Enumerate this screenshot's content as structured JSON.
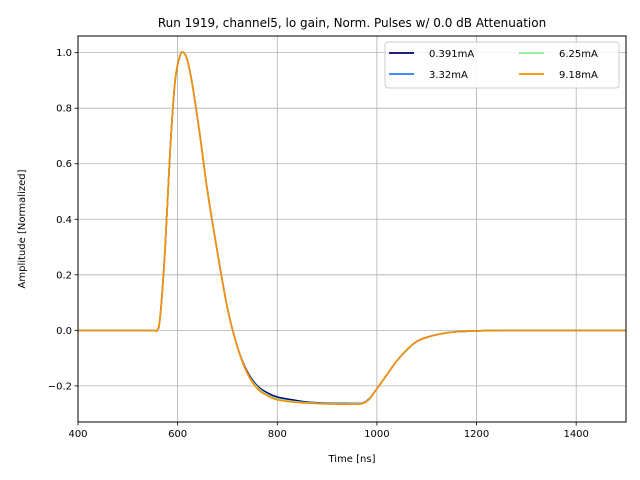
{
  "chart_data": {
    "type": "line",
    "title": "Run 1919, channel5, lo gain, Norm. Pulses w/ 0.0 dB Attenuation",
    "xlabel": "Time [ns]",
    "ylabel": "Amplitude [Normalized]",
    "xlim": [
      400,
      1500
    ],
    "ylim": [
      -0.33,
      1.06
    ],
    "xticks": [
      400,
      600,
      800,
      1000,
      1200,
      1400
    ],
    "yticks": [
      -0.2,
      0.0,
      0.2,
      0.4,
      0.6,
      0.8,
      1.0
    ],
    "ytick_labels": [
      "−0.2",
      "0.0",
      "0.2",
      "0.4",
      "0.6",
      "0.8",
      "1.0"
    ],
    "grid": true,
    "legend": {
      "placement": "top-right",
      "columns": 2
    },
    "x": [
      400,
      540,
      558,
      565,
      575,
      585,
      595,
      605,
      612,
      620,
      630,
      645,
      660,
      680,
      700,
      720,
      740,
      760,
      780,
      800,
      830,
      860,
      900,
      940,
      970,
      985,
      1000,
      1020,
      1040,
      1060,
      1080,
      1100,
      1130,
      1160,
      1200,
      1250,
      1300,
      1400,
      1500
    ],
    "series": [
      {
        "name": "0.391mA",
        "color": "#00006e",
        "values": [
          0.0,
          0.0,
          0.0,
          0.05,
          0.3,
          0.65,
          0.9,
          0.99,
          1.0,
          0.97,
          0.88,
          0.7,
          0.5,
          0.28,
          0.08,
          -0.06,
          -0.15,
          -0.2,
          -0.225,
          -0.24,
          -0.25,
          -0.258,
          -0.262,
          -0.263,
          -0.262,
          -0.245,
          -0.21,
          -0.16,
          -0.11,
          -0.07,
          -0.04,
          -0.025,
          -0.012,
          -0.005,
          -0.002,
          0.0,
          0.0,
          0.0,
          0.0
        ]
      },
      {
        "name": "3.32mA",
        "color": "#1f7fff",
        "values": [
          0.0,
          0.0,
          0.0,
          0.05,
          0.3,
          0.65,
          0.9,
          0.99,
          1.0,
          0.97,
          0.88,
          0.7,
          0.5,
          0.28,
          0.08,
          -0.06,
          -0.155,
          -0.205,
          -0.23,
          -0.245,
          -0.255,
          -0.26,
          -0.263,
          -0.264,
          -0.262,
          -0.245,
          -0.21,
          -0.16,
          -0.11,
          -0.07,
          -0.04,
          -0.025,
          -0.012,
          -0.005,
          -0.002,
          0.0,
          0.0,
          0.0,
          0.0
        ]
      },
      {
        "name": "6.25mA",
        "color": "#90ee90",
        "values": [
          0.0,
          0.0,
          0.0,
          0.05,
          0.3,
          0.65,
          0.9,
          0.99,
          1.0,
          0.97,
          0.88,
          0.7,
          0.5,
          0.28,
          0.08,
          -0.06,
          -0.155,
          -0.205,
          -0.232,
          -0.247,
          -0.256,
          -0.261,
          -0.264,
          -0.265,
          -0.263,
          -0.246,
          -0.21,
          -0.16,
          -0.11,
          -0.07,
          -0.04,
          -0.025,
          -0.012,
          -0.005,
          -0.002,
          0.0,
          0.0,
          0.0,
          0.0
        ]
      },
      {
        "name": "9.18mA",
        "color": "#ff8c00",
        "values": [
          0.0,
          0.0,
          0.0,
          0.05,
          0.3,
          0.65,
          0.9,
          0.99,
          1.0,
          0.97,
          0.88,
          0.7,
          0.5,
          0.28,
          0.08,
          -0.06,
          -0.155,
          -0.21,
          -0.235,
          -0.25,
          -0.258,
          -0.262,
          -0.265,
          -0.266,
          -0.264,
          -0.247,
          -0.21,
          -0.16,
          -0.11,
          -0.07,
          -0.04,
          -0.025,
          -0.012,
          -0.005,
          -0.002,
          0.0,
          0.0,
          0.0,
          0.0
        ]
      }
    ]
  }
}
